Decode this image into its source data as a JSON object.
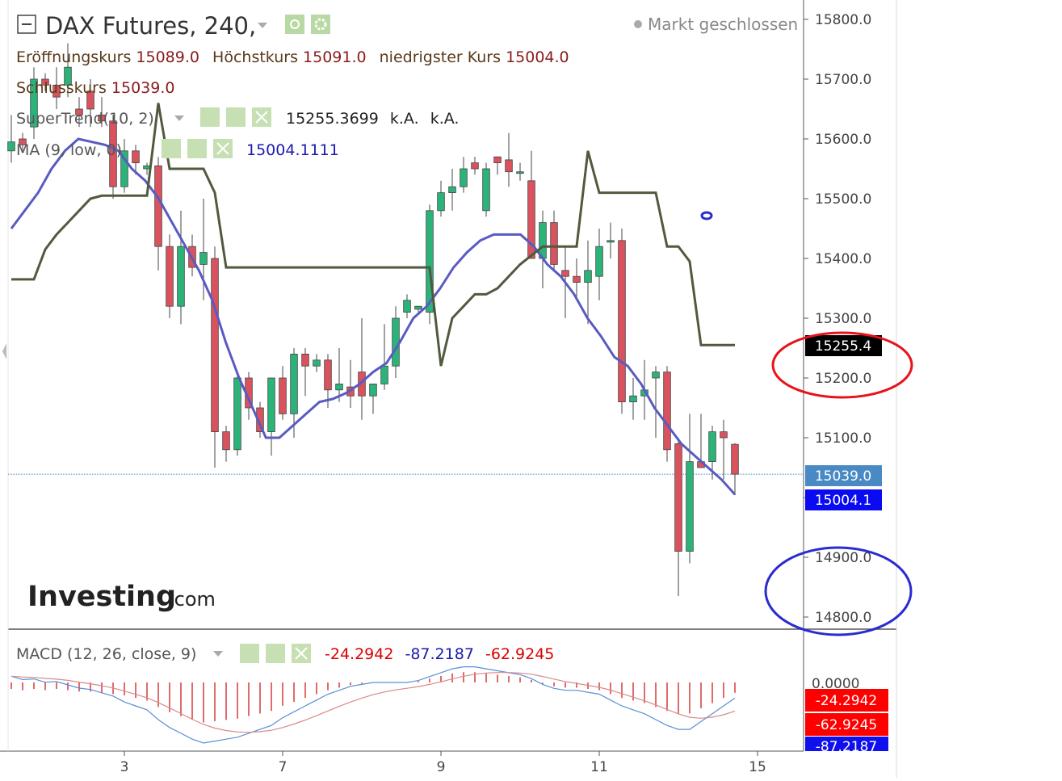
{
  "title": {
    "symbol": "DAX Futures, 240,",
    "status": "Markt geschlossen"
  },
  "ohlc": {
    "open_label": "Eröffnungskurs",
    "open_value": "15089.0",
    "high_label": "Höchstkurs",
    "high_value": "15091.0",
    "low_label": "niedrigster Kurs",
    "low_value": "15004.0",
    "close_label": "Schlusskurs",
    "close_value": "15039.0"
  },
  "indicators": {
    "supertrend": {
      "label": "SuperTrend(10, 2)",
      "value": "15255.3699",
      "extra1": "k.A.",
      "extra2": "k.A."
    },
    "ma": {
      "label": "MA (9, low, 0)",
      "value": "15004.1111"
    },
    "macd": {
      "label": "MACD (12, 26, close, 9)",
      "v1": "-24.2942",
      "v2": "-87.2187",
      "v3": "-62.9245"
    }
  },
  "price_tags": {
    "supertrend": "15255.4",
    "close": "15039.0",
    "ma": "15004.1"
  },
  "macd_tags": {
    "hist": "-24.2942",
    "signal": "-62.9245",
    "macd": "-87.2187",
    "zero": "0.0000"
  },
  "watermark": {
    "brand": "Investing",
    "suffix": ".com"
  },
  "colors": {
    "up": "#2bb37a",
    "down": "#d9525e",
    "supertrend": "#505a3e",
    "ma": "#5a5bc0",
    "macd_line": "#5a8fd6",
    "signal_line": "#d98a8a",
    "hist": "#d43a3a",
    "red_circle": "#e8121b",
    "blue_circle": "#2a2bd0"
  },
  "chart_data": {
    "type": "candlestick",
    "x_tick_labels": [
      "3",
      "7",
      "9",
      "11",
      "15"
    ],
    "y_ticks": [
      14800,
      14900,
      15000,
      15100,
      15200,
      15300,
      15400,
      15500,
      15600,
      15700,
      15800
    ],
    "ylim": [
      14760,
      15835
    ],
    "candles": [
      [
        15580,
        15640,
        15560,
        15595
      ],
      [
        15600,
        15610,
        15580,
        15590
      ],
      [
        15620,
        15720,
        15600,
        15700
      ],
      [
        15700,
        15710,
        15680,
        15690
      ],
      [
        15690,
        15720,
        15650,
        15670
      ],
      [
        15690,
        15760,
        15670,
        15720
      ],
      [
        15650,
        15670,
        15620,
        15640
      ],
      [
        15680,
        15700,
        15620,
        15650
      ],
      [
        15640,
        15670,
        15620,
        15630
      ],
      [
        15630,
        15640,
        15500,
        15520
      ],
      [
        15520,
        15600,
        15510,
        15580
      ],
      [
        15580,
        15590,
        15540,
        15560
      ],
      [
        15550,
        15560,
        15540,
        15555
      ],
      [
        15555,
        15570,
        15380,
        15420
      ],
      [
        15420,
        15440,
        15300,
        15320
      ],
      [
        15320,
        15480,
        15290,
        15420
      ],
      [
        15420,
        15440,
        15370,
        15385
      ],
      [
        15390,
        15500,
        15330,
        15410
      ],
      [
        15400,
        15420,
        15050,
        15110
      ],
      [
        15110,
        15120,
        15060,
        15080
      ],
      [
        15080,
        15210,
        15070,
        15200
      ],
      [
        15200,
        15210,
        15130,
        15150
      ],
      [
        15150,
        15160,
        15100,
        15110
      ],
      [
        15110,
        15200,
        15070,
        15200
      ],
      [
        15200,
        15220,
        15130,
        15140
      ],
      [
        15140,
        15250,
        15100,
        15240
      ],
      [
        15240,
        15250,
        15170,
        15220
      ],
      [
        15220,
        15240,
        15210,
        15230
      ],
      [
        15230,
        15240,
        15150,
        15180
      ],
      [
        15180,
        15250,
        15160,
        15190
      ],
      [
        15185,
        15230,
        15150,
        15170
      ],
      [
        15210,
        15300,
        15130,
        15170
      ],
      [
        15170,
        15190,
        15140,
        15190
      ],
      [
        15190,
        15290,
        15180,
        15220
      ],
      [
        15220,
        15320,
        15200,
        15300
      ],
      [
        15310,
        15340,
        15300,
        15330
      ],
      [
        15315,
        15320,
        15310,
        15320
      ],
      [
        15310,
        15490,
        15290,
        15480
      ],
      [
        15480,
        15530,
        15470,
        15510
      ],
      [
        15510,
        15550,
        15480,
        15520
      ],
      [
        15520,
        15570,
        15510,
        15550
      ],
      [
        15560,
        15570,
        15540,
        15550
      ],
      [
        15480,
        15560,
        15470,
        15550
      ],
      [
        15570,
        15570,
        15540,
        15560
      ],
      [
        15565,
        15610,
        15520,
        15545
      ],
      [
        15545,
        15560,
        15530,
        15545
      ],
      [
        15530,
        15580,
        15400,
        15400
      ],
      [
        15400,
        15480,
        15350,
        15460
      ],
      [
        15460,
        15480,
        15380,
        15390
      ],
      [
        15380,
        15420,
        15300,
        15370
      ],
      [
        15370,
        15400,
        15330,
        15360
      ],
      [
        15360,
        15430,
        15290,
        15380
      ],
      [
        15370,
        15450,
        15330,
        15420
      ],
      [
        15430,
        15460,
        15400,
        15430
      ],
      [
        15430,
        15450,
        15140,
        15160
      ],
      [
        15160,
        15200,
        15130,
        15170
      ],
      [
        15170,
        15230,
        15130,
        15180
      ],
      [
        15200,
        15220,
        15100,
        15210
      ],
      [
        15210,
        15220,
        15060,
        15080
      ],
      [
        15090,
        15100,
        14835,
        14910
      ],
      [
        14910,
        15140,
        14890,
        15060
      ],
      [
        15060,
        15140,
        15050,
        15050
      ],
      [
        15060,
        15120,
        15030,
        15110
      ],
      [
        15110,
        15130,
        15030,
        15100
      ],
      [
        15089,
        15091,
        15004,
        15039
      ]
    ],
    "supertrend": [
      15365,
      15365,
      15365,
      15415,
      15440,
      15460,
      15480,
      15500,
      15505,
      15505,
      15505,
      15505,
      15505,
      15660,
      15550,
      15550,
      15550,
      15550,
      15510,
      15385,
      15385,
      15385,
      15385,
      15385,
      15385,
      15385,
      15385,
      15385,
      15385,
      15385,
      15385,
      15385,
      15385,
      15385,
      15385,
      15385,
      15385,
      15385,
      15220,
      15300,
      15320,
      15340,
      15340,
      15350,
      15370,
      15390,
      15405,
      15420,
      15420,
      15420,
      15420,
      15580,
      15510,
      15510,
      15510,
      15510,
      15510,
      15510,
      15420,
      15420,
      15395,
      15255,
      15255,
      15255,
      15255
    ],
    "ma": [
      15450,
      15480,
      15510,
      15550,
      15580,
      15600,
      15595,
      15590,
      15580,
      15550,
      15530,
      15500,
      15460,
      15420,
      15380,
      15330,
      15260,
      15200,
      15150,
      15100,
      15100,
      15120,
      15140,
      15160,
      15165,
      15175,
      15190,
      15210,
      15225,
      15260,
      15300,
      15320,
      15350,
      15385,
      15410,
      15430,
      15440,
      15440,
      15440,
      15420,
      15390,
      15370,
      15340,
      15300,
      15270,
      15235,
      15220,
      15190,
      15150,
      15120,
      15090,
      15070,
      15050,
      15030,
      15005
    ],
    "macd_hist": [
      -0.5,
      -0.6,
      -0.5,
      -0.6,
      -0.5,
      -0.6,
      -0.7,
      -0.7,
      -0.8,
      -0.9,
      -1.0,
      -1.2,
      -1.4,
      -1.9,
      -2.3,
      -2.6,
      -2.9,
      -3.1,
      -3.0,
      -2.9,
      -2.8,
      -2.6,
      -2.4,
      -2.2,
      -1.8,
      -1.5,
      -1.2,
      -0.9,
      -0.6,
      -0.4,
      -0.2,
      -0.1,
      0.0,
      0.0,
      0.0,
      0.0,
      0.1,
      0.3,
      0.5,
      0.7,
      0.8,
      0.8,
      0.7,
      0.6,
      0.5,
      0.4,
      0.2,
      -0.1,
      -0.3,
      -0.4,
      -0.4,
      -0.5,
      -0.6,
      -0.9,
      -1.2,
      -1.4,
      -1.6,
      -1.9,
      -2.2,
      -2.4,
      -2.4,
      -2.0,
      -1.6,
      -1.2,
      -0.8
    ]
  }
}
